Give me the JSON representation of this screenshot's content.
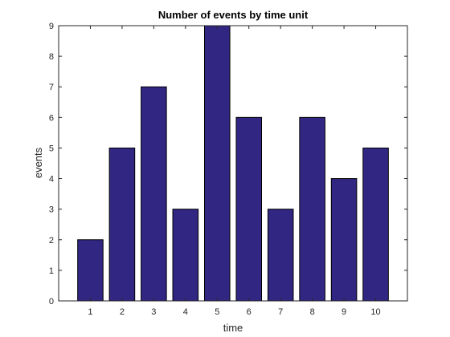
{
  "chart_data": {
    "type": "bar",
    "title": "Number of events by time unit",
    "xlabel": "time",
    "ylabel": "events",
    "categories": [
      "1",
      "2",
      "3",
      "4",
      "5",
      "6",
      "7",
      "8",
      "9",
      "10"
    ],
    "values": [
      2,
      5,
      7,
      3,
      9,
      6,
      3,
      6,
      4,
      5
    ],
    "xlim": [
      0,
      11
    ],
    "ylim": [
      0,
      9
    ],
    "yticks": [
      0,
      1,
      2,
      3,
      4,
      5,
      6,
      7,
      8,
      9
    ],
    "grid": false,
    "legend": "none",
    "bar_color": "#312783",
    "bar_edge_color": "#000000",
    "axis_color": "#262626",
    "background_color": "#ffffff"
  }
}
